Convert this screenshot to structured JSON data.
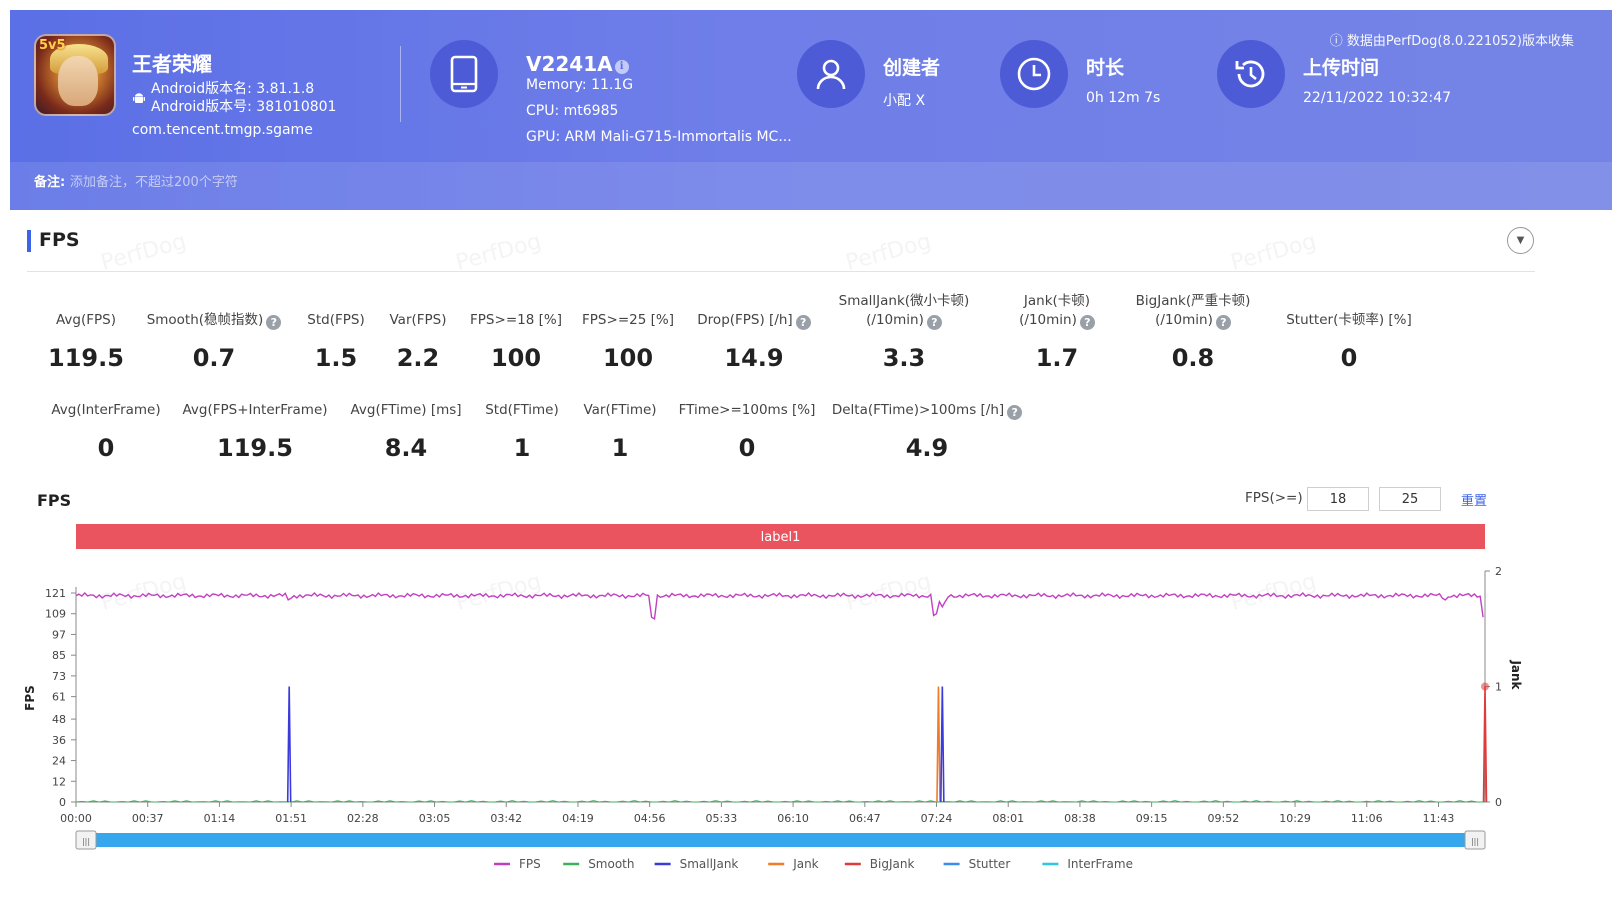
{
  "header": {
    "app_name": "王者荣耀",
    "android_version_name": "Android版本名: 3.81.1.8",
    "android_version_code": "Android版本号: 381010801",
    "package": "com.tencent.tmgp.sgame",
    "icon_badge": "5v5",
    "device": {
      "name": "V2241A",
      "memory": "Memory: 11.1G",
      "cpu": "CPU: mt6985",
      "gpu": "GPU: ARM Mali-G715-Immortalis MC..."
    },
    "creator": {
      "title": "创建者",
      "value": "小配 X"
    },
    "duration": {
      "title": "时长",
      "value": "0h 12m 7s"
    },
    "upload": {
      "title": "上传时间",
      "value": "22/11/2022 10:32:47"
    },
    "source_note": "ⓘ 数据由PerfDog(8.0.221052)版本收集",
    "note_label": "备注:",
    "note_placeholder": "添加备注，不超过200个字符",
    "colors": {
      "banner": "#5b6fe6",
      "icon_circle": "#4d5bd6"
    }
  },
  "section": {
    "title": "FPS",
    "metrics_row1": [
      {
        "label": "Avg(FPS)",
        "value": "119.5"
      },
      {
        "label": "Smooth(稳帧指数)",
        "value": "0.7",
        "help": true
      },
      {
        "label": "Std(FPS)",
        "value": "1.5"
      },
      {
        "label": "Var(FPS)",
        "value": "2.2"
      },
      {
        "label": "FPS>=18 [%]",
        "value": "100"
      },
      {
        "label": "FPS>=25 [%]",
        "value": "100"
      },
      {
        "label": "Drop(FPS) [/h]",
        "value": "14.9",
        "help": true
      },
      {
        "label": "SmallJank(微小卡顿)",
        "label2": "(/10min)",
        "value": "3.3",
        "help": true
      },
      {
        "label": "Jank(卡顿)",
        "label2": "(/10min)",
        "value": "1.7",
        "help": true
      },
      {
        "label": "BigJank(严重卡顿)",
        "label2": "(/10min)",
        "value": "0.8",
        "help": true
      },
      {
        "label": "Stutter(卡顿率) [%]",
        "value": "0"
      }
    ],
    "metrics_row2": [
      {
        "label": "Avg(InterFrame)",
        "value": "0"
      },
      {
        "label": "Avg(FPS+InterFrame)",
        "value": "119.5"
      },
      {
        "label": "Avg(FTime) [ms]",
        "value": "8.4"
      },
      {
        "label": "Std(FTime)",
        "value": "1"
      },
      {
        "label": "Var(FTime)",
        "value": "1"
      },
      {
        "label": "FTime>=100ms [%]",
        "value": "0"
      },
      {
        "label": "Delta(FTime)>100ms [/h]",
        "value": "4.9",
        "help": true
      }
    ],
    "help_glyph": "?",
    "collapse_glyph": "▼"
  },
  "chart_controls": {
    "title": "FPS",
    "threshold_label": "FPS(>=)",
    "threshold1": "18",
    "threshold2": "25",
    "reset_label": "重置",
    "range_handle_glyph": "|||",
    "watermark": "PerfDog"
  },
  "chart_data": {
    "type": "line",
    "label_band": "label1",
    "ylabel": "FPS",
    "y2label": "Jank",
    "y_ticks": [
      "0",
      "12",
      "24",
      "36",
      "48",
      "61",
      "73",
      "85",
      "97",
      "109",
      "121"
    ],
    "y_range": [
      0,
      121
    ],
    "y2_ticks": [
      "0",
      "1",
      "2"
    ],
    "y2_range": [
      0,
      2
    ],
    "x_ticks": [
      "00:00",
      "00:37",
      "01:14",
      "01:51",
      "02:28",
      "03:05",
      "03:42",
      "04:19",
      "04:56",
      "05:33",
      "06:10",
      "06:47",
      "07:24",
      "08:01",
      "08:38",
      "09:15",
      "09:52",
      "10:29",
      "11:06",
      "11:43"
    ],
    "x_range_seconds": [
      0,
      727
    ],
    "fps_baseline": 119.5,
    "fps_dips": [
      {
        "t": 110,
        "value": 116
      },
      {
        "t": 298,
        "value": 105
      },
      {
        "t": 443,
        "value": 107
      },
      {
        "t": 447,
        "value": 113
      },
      {
        "t": 706,
        "value": 116
      },
      {
        "t": 727,
        "value": 105
      }
    ],
    "events": [
      {
        "series": "SmallJank",
        "t": 110,
        "value": 1
      },
      {
        "series": "Jank",
        "t": 445,
        "value": 1
      },
      {
        "series": "SmallJank",
        "t": 447,
        "value": 1
      },
      {
        "series": "BigJank",
        "t": 727,
        "value": 1
      }
    ],
    "series": [
      {
        "name": "FPS",
        "color": "#c23fc2"
      },
      {
        "name": "Smooth",
        "color": "#3cb35a"
      },
      {
        "name": "SmallJank",
        "color": "#3b3bdc"
      },
      {
        "name": "Jank",
        "color": "#f07c2a"
      },
      {
        "name": "BigJank",
        "color": "#e03a3a"
      },
      {
        "name": "Stutter",
        "color": "#3a8ee8"
      },
      {
        "name": "InterFrame",
        "color": "#2ec5e0"
      }
    ],
    "grid": false,
    "legend_position": "bottom-center",
    "colors": {
      "label_band": "#e9545f",
      "range_bar": "#36a7ec"
    }
  }
}
